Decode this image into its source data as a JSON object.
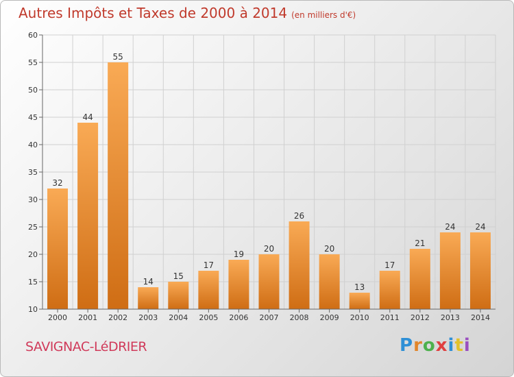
{
  "title": "Autres Impôts et Taxes de 2000 à 2014",
  "unit_label": "(en milliers d'€)",
  "commune": "SAVIGNAC-LéDRIER",
  "logo": "Proxiti",
  "colors": {
    "bar_light": "#f7a64e",
    "bar_dark": "#cf6d14",
    "title": "#c0392b",
    "commune": "#d03a5a"
  },
  "chart_data": {
    "type": "bar",
    "title": "Autres Impôts et Taxes de 2000 à 2014",
    "categories": [
      "2000",
      "2001",
      "2002",
      "2003",
      "2004",
      "2005",
      "2006",
      "2007",
      "2008",
      "2009",
      "2010",
      "2011",
      "2012",
      "2013",
      "2014"
    ],
    "values": [
      32,
      44,
      55,
      14,
      15,
      17,
      19,
      20,
      26,
      20,
      13,
      17,
      21,
      24,
      24
    ],
    "ylim": [
      10,
      60
    ],
    "yticks": [
      10,
      15,
      20,
      25,
      30,
      35,
      40,
      45,
      50,
      55,
      60
    ],
    "grid": true,
    "xlabel": "",
    "ylabel": ""
  }
}
